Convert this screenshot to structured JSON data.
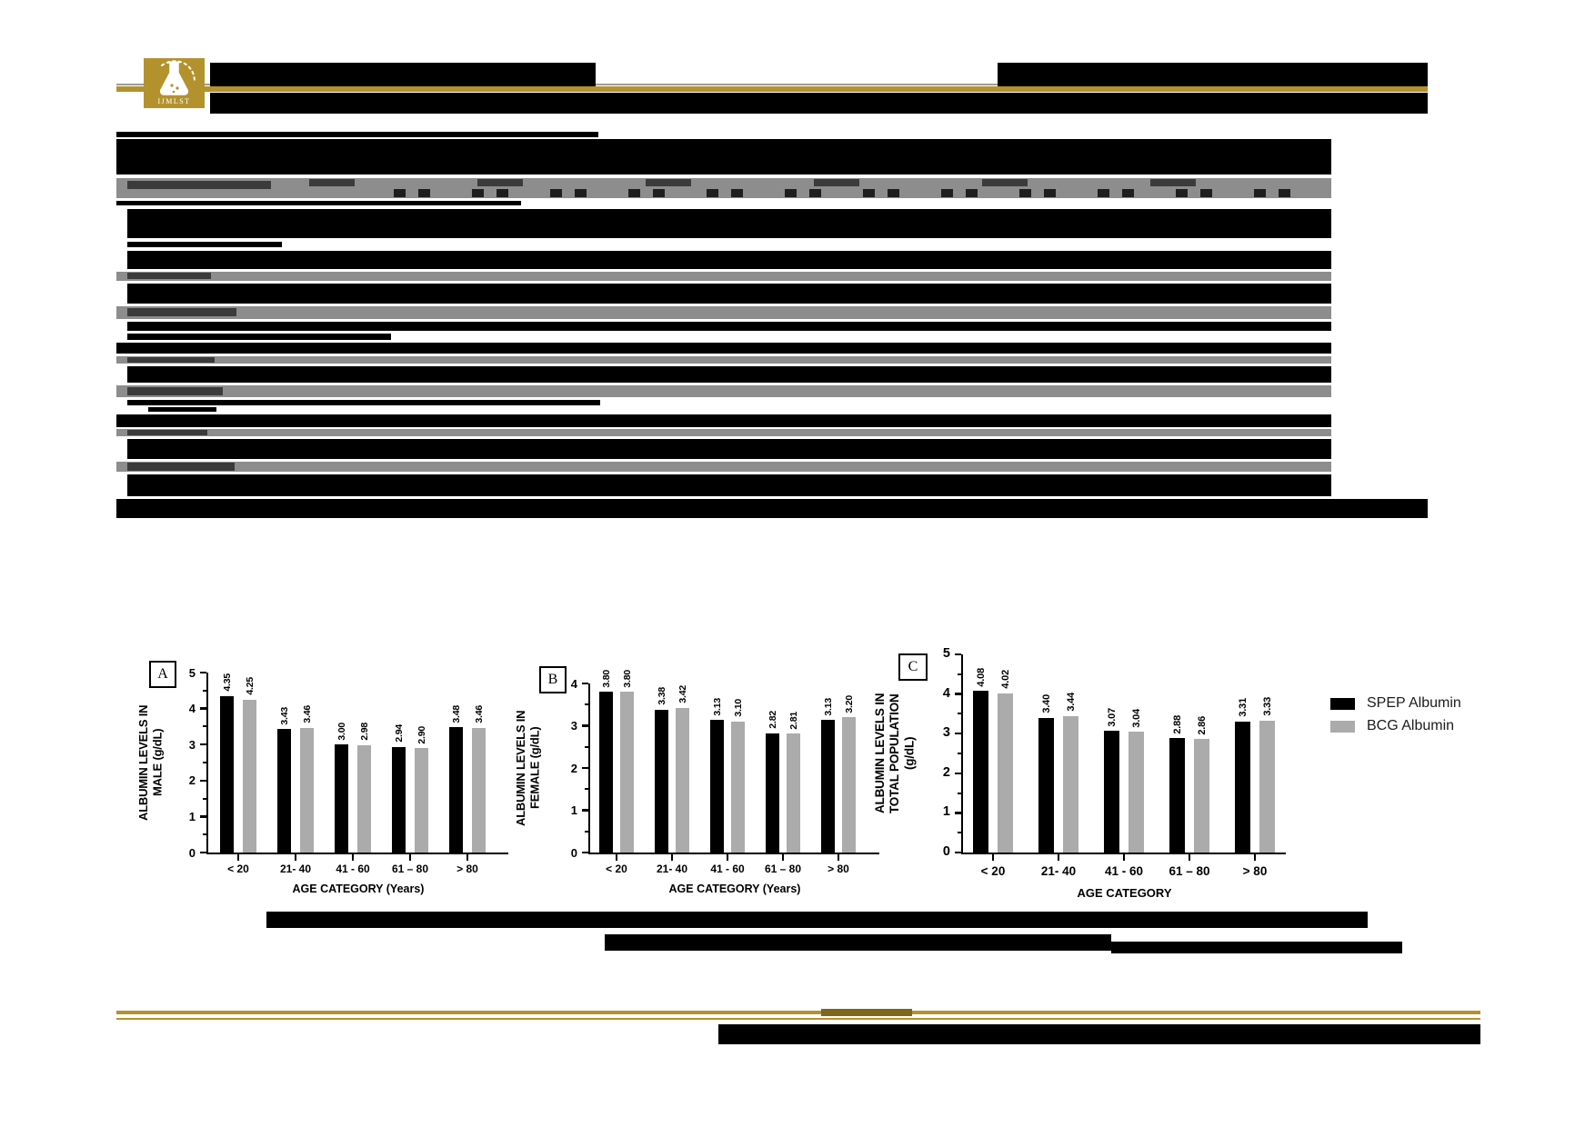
{
  "header": {
    "logo_text": "IJMLST",
    "brand_gold": "#b3922e"
  },
  "legend": {
    "items": [
      {
        "label": "SPEP Albumin",
        "color": "#000000"
      },
      {
        "label": "BCG Albumin",
        "color": "#ababab"
      }
    ]
  },
  "chart_data": [
    {
      "type": "bar",
      "panel": "A",
      "ylabel": "ALBUMIN LEVELS IN\nMALE (g/dL)",
      "xlabel": "AGE CATEGORY (Years)",
      "categories": [
        "< 20",
        "21- 40",
        "41 - 60",
        "61 – 80",
        "> 80"
      ],
      "series": [
        {
          "name": "SPEP Albumin",
          "color": "#000000",
          "values": [
            4.35,
            3.43,
            3.0,
            2.94,
            3.48
          ]
        },
        {
          "name": "BCG Albumin",
          "color": "#ababab",
          "values": [
            4.25,
            3.46,
            2.98,
            2.9,
            3.46
          ]
        }
      ],
      "ylim": [
        0,
        5
      ],
      "ytick_step": 1,
      "grid": false,
      "legend_position": "right-of-figure"
    },
    {
      "type": "bar",
      "panel": "B",
      "ylabel": "ALBUMIN LEVELS IN\nFEMALE (g/dL)",
      "xlabel": "AGE CATEGORY (Years)",
      "categories": [
        "< 20",
        "21- 40",
        "41 - 60",
        "61 – 80",
        "> 80"
      ],
      "series": [
        {
          "name": "SPEP Albumin",
          "color": "#000000",
          "values": [
            3.8,
            3.38,
            3.13,
            2.82,
            3.13
          ]
        },
        {
          "name": "BCG Albumin",
          "color": "#ababab",
          "values": [
            3.8,
            3.42,
            3.1,
            2.81,
            3.2
          ]
        }
      ],
      "ylim": [
        0,
        4
      ],
      "ytick_step": 1,
      "grid": false,
      "legend_position": "right-of-figure"
    },
    {
      "type": "bar",
      "panel": "C",
      "ylabel": "ALBUMIN LEVELS IN\nTOTAL POPULATION\n(g/dL)",
      "xlabel": "AGE CATEGORY",
      "categories": [
        "< 20",
        "21- 40",
        "41 - 60",
        "61 – 80",
        "> 80"
      ],
      "series": [
        {
          "name": "SPEP Albumin",
          "color": "#000000",
          "values": [
            4.08,
            3.4,
            3.07,
            2.88,
            3.31
          ]
        },
        {
          "name": "BCG Albumin",
          "color": "#ababab",
          "values": [
            4.02,
            3.44,
            3.04,
            2.86,
            3.33
          ]
        }
      ],
      "ylim": [
        0,
        5
      ],
      "ytick_step": 1,
      "grid": false,
      "legend_position": "right-of-figure"
    }
  ]
}
